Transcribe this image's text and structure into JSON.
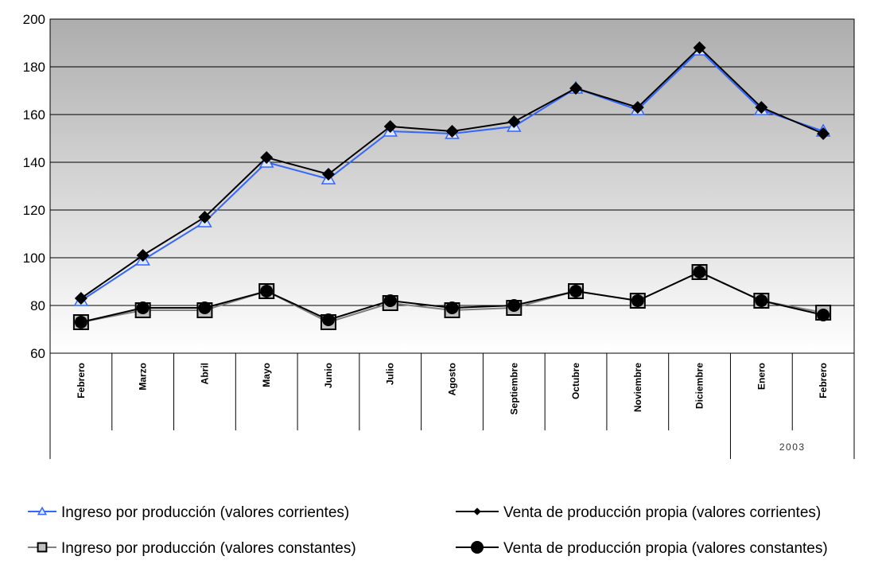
{
  "chart_data": {
    "type": "line",
    "categories": [
      "Febrero",
      "Marzo",
      "Abril",
      "Mayo",
      "Junio",
      "Julio",
      "Agosto",
      "Septiembre",
      "Octubre",
      "Noviembre",
      "Diciembre",
      "Enero",
      "Febrero"
    ],
    "category_groups": [
      null,
      null,
      null,
      null,
      null,
      null,
      null,
      null,
      null,
      null,
      null,
      "2003",
      null
    ],
    "series": [
      {
        "name": "Ingreso por producción (valores corrientes)",
        "color": "#3366ff",
        "marker": "triangle",
        "values": [
          82,
          99,
          115,
          140,
          133,
          153,
          152,
          155,
          171,
          162,
          187,
          162,
          153
        ]
      },
      {
        "name": "Venta de producción propia (valores corrientes)",
        "color": "#000000",
        "marker": "diamond",
        "values": [
          83,
          101,
          117,
          142,
          135,
          155,
          153,
          157,
          171,
          163,
          188,
          163,
          152
        ]
      },
      {
        "name": "Ingreso por producción (valores constantes)",
        "color": "#808080",
        "marker": "square",
        "values": [
          73,
          78,
          78,
          86,
          73,
          81,
          78,
          79,
          86,
          82,
          94,
          82,
          77
        ]
      },
      {
        "name": "Venta de producción propia (valores constantes)",
        "color": "#000000",
        "marker": "circle",
        "values": [
          73,
          79,
          79,
          86,
          74,
          82,
          79,
          80,
          86,
          82,
          94,
          82,
          76
        ]
      }
    ],
    "ylim": [
      60,
      200
    ],
    "yticks": [
      60,
      80,
      100,
      120,
      140,
      160,
      180,
      200
    ],
    "grid": true
  }
}
